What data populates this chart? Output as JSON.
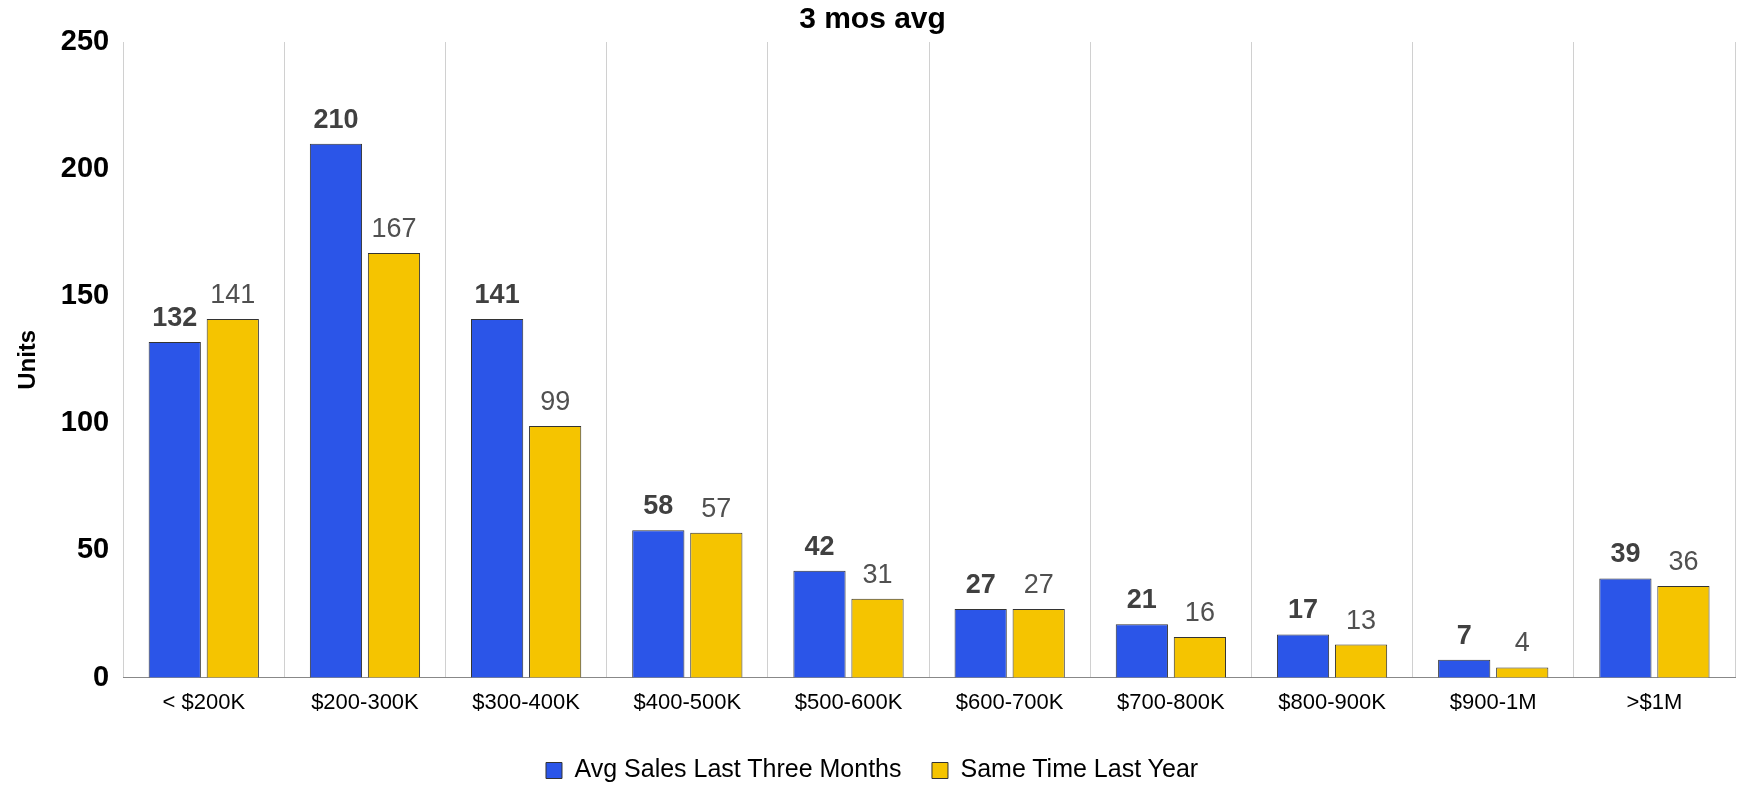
{
  "chart_data": {
    "type": "bar",
    "title": "3 mos avg",
    "ylabel": "Units",
    "categories": [
      "< $200K",
      "$200-300K",
      "$300-400K",
      "$400-500K",
      "$500-600K",
      "$600-700K",
      "$700-800K",
      "$800-900K",
      "$900-1M",
      ">$1M"
    ],
    "series": [
      {
        "name": "Avg Sales Last Three Months",
        "color": "#2b55e8",
        "values": [
          132,
          210,
          141,
          58,
          42,
          27,
          21,
          17,
          7,
          39
        ]
      },
      {
        "name": "Same Time Last Year",
        "color": "#f5c400",
        "values": [
          141,
          167,
          99,
          57,
          31,
          27,
          16,
          13,
          4,
          36
        ]
      }
    ],
    "ylim": [
      0,
      250
    ],
    "yticks": [
      0,
      50,
      100,
      150,
      200,
      250
    ],
    "grid": "x",
    "legend": "bottom",
    "data_labels": true
  }
}
